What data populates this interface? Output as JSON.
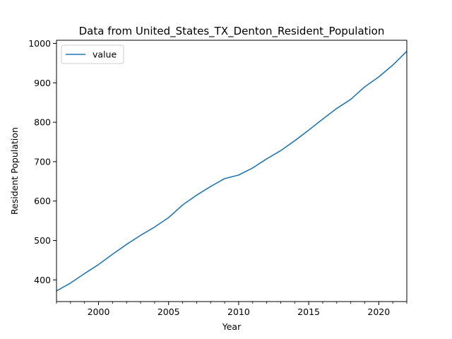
{
  "chart_data": {
    "type": "line",
    "title": "Data from United_States_TX_Denton_Resident_Population",
    "xlabel": "Year",
    "ylabel": "Resident Population",
    "xlim": [
      1997,
      2022
    ],
    "ylim": [
      345,
      1008
    ],
    "x_ticks": [
      2000,
      2005,
      2010,
      2015,
      2020
    ],
    "x_minor_ticks": [
      1997,
      1998,
      1999,
      2001,
      2002,
      2003,
      2004,
      2006,
      2007,
      2008,
      2009,
      2011,
      2012,
      2013,
      2014,
      2016,
      2017,
      2018,
      2019,
      2021,
      2022
    ],
    "y_ticks": [
      400,
      500,
      600,
      700,
      800,
      900,
      1000
    ],
    "legend_position": "top-left",
    "grid": false,
    "series": [
      {
        "name": "value",
        "color": "#1f77b4",
        "x": [
          1997,
          1998,
          1999,
          2000,
          2001,
          2002,
          2003,
          2004,
          2005,
          2006,
          2007,
          2008,
          2009,
          2010,
          2011,
          2012,
          2013,
          2014,
          2015,
          2016,
          2017,
          2018,
          2019,
          2020,
          2021,
          2022
        ],
        "y": [
          372,
          392,
          416,
          439,
          465,
          490,
          513,
          534,
          558,
          590,
          615,
          637,
          657,
          666,
          684,
          707,
          728,
          753,
          780,
          808,
          835,
          858,
          890,
          915,
          945,
          980
        ]
      }
    ]
  }
}
